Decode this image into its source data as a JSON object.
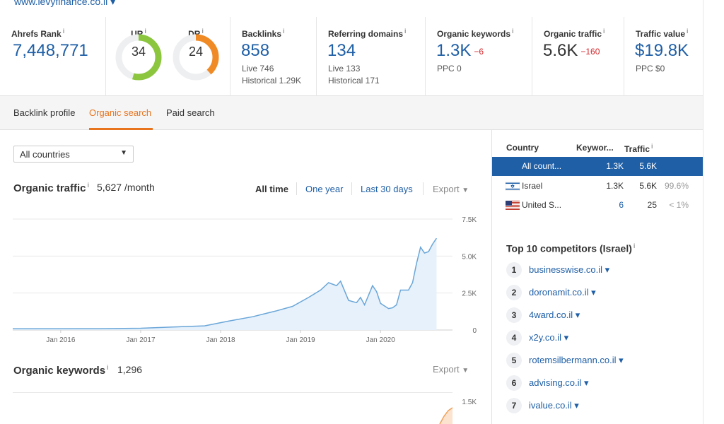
{
  "header": {
    "domain_link": "www.levyfinance.co.il ▾"
  },
  "metrics": {
    "ahrefs_rank": {
      "label": "Ahrefs Rank",
      "value": "7,448,771"
    },
    "ur": {
      "label": "UR",
      "value": "34",
      "level": 34,
      "color": "#8cc63f"
    },
    "dr": {
      "label": "DR",
      "value": "24",
      "level": 24,
      "color": "#f08a24"
    },
    "backlinks": {
      "label": "Backlinks",
      "value": "858",
      "sub1": "Live 746",
      "sub2": "Historical 1.29K"
    },
    "referring_domains": {
      "label": "Referring domains",
      "value": "134",
      "sub1": "Live 133",
      "sub2": "Historical 171"
    },
    "organic_keywords": {
      "label": "Organic keywords",
      "value": "1.3K",
      "delta": "−6",
      "sub1": "PPC 0"
    },
    "organic_traffic": {
      "label": "Organic traffic",
      "value": "5.6K",
      "delta": "−160"
    },
    "traffic_value": {
      "label": "Traffic value",
      "value": "$19.8K",
      "sub1": "PPC $0"
    }
  },
  "tabs": {
    "backlink": "Backlink profile",
    "organic": "Organic search",
    "paid": "Paid search"
  },
  "filters": {
    "country_select": "All countries"
  },
  "traffic_section": {
    "title": "Organic traffic",
    "value": "5,627 /month",
    "ranges": {
      "all_time": "All time",
      "one_year": "One year",
      "last_30": "Last 30 days"
    },
    "export": "Export"
  },
  "keywords_section": {
    "title": "Organic keywords",
    "value": "1,296",
    "export": "Export"
  },
  "country_table": {
    "headers": {
      "country": "Country",
      "keywords": "Keywor...",
      "traffic": "Traffic"
    },
    "rows": [
      {
        "country": "All count...",
        "keywords": "1.3K",
        "traffic": "5.6K",
        "share": ""
      },
      {
        "country": "Israel",
        "keywords": "1.3K",
        "traffic": "5.6K",
        "share": "99.6%"
      },
      {
        "country": "United S...",
        "keywords": "6",
        "traffic": "25",
        "share": "< 1%"
      }
    ]
  },
  "competitors": {
    "title": "Top 10 competitors (Israel)",
    "items": [
      {
        "num": "1",
        "name": "businesswise.co.il ▾"
      },
      {
        "num": "2",
        "name": "doronamit.co.il ▾"
      },
      {
        "num": "3",
        "name": "4ward.co.il ▾"
      },
      {
        "num": "4",
        "name": "x2y.co.il ▾"
      },
      {
        "num": "5",
        "name": "rotemsilbermann.co.il ▾"
      },
      {
        "num": "6",
        "name": "advising.co.il ▾"
      },
      {
        "num": "7",
        "name": "ivalue.co.il ▾"
      }
    ]
  },
  "chart_data": [
    {
      "type": "area",
      "title": "Organic traffic",
      "x_ticks": [
        "Jan 2016",
        "Jan 2017",
        "Jan 2018",
        "Jan 2019",
        "Jan 2020"
      ],
      "y_ticks": [
        "7.5K",
        "5.0K",
        "2.5K",
        "0"
      ],
      "ylim": [
        0,
        7500
      ],
      "xlim": [
        2015.4,
        2020.9
      ],
      "x": [
        2015.4,
        2016.5,
        2017.0,
        2017.4,
        2017.8,
        2018.1,
        2018.4,
        2018.7,
        2018.9,
        2019.1,
        2019.25,
        2019.35,
        2019.45,
        2019.5,
        2019.6,
        2019.7,
        2019.75,
        2019.8,
        2019.9,
        2019.95,
        2020.0,
        2020.1,
        2020.15,
        2020.2,
        2020.25,
        2020.35,
        2020.4,
        2020.45,
        2020.5,
        2020.55,
        2020.6,
        2020.65,
        2020.7
      ],
      "y": [
        80,
        90,
        120,
        200,
        280,
        600,
        900,
        1300,
        1600,
        2200,
        2700,
        3200,
        3000,
        3300,
        2000,
        1850,
        2200,
        1700,
        3000,
        2600,
        1800,
        1450,
        1500,
        1700,
        2700,
        2700,
        3200,
        4500,
        5600,
        5200,
        5300,
        5800,
        6200
      ]
    },
    {
      "type": "area",
      "title": "Organic keywords",
      "y_ticks": [
        "1.5K"
      ],
      "ylim": [
        0,
        1500
      ]
    }
  ]
}
